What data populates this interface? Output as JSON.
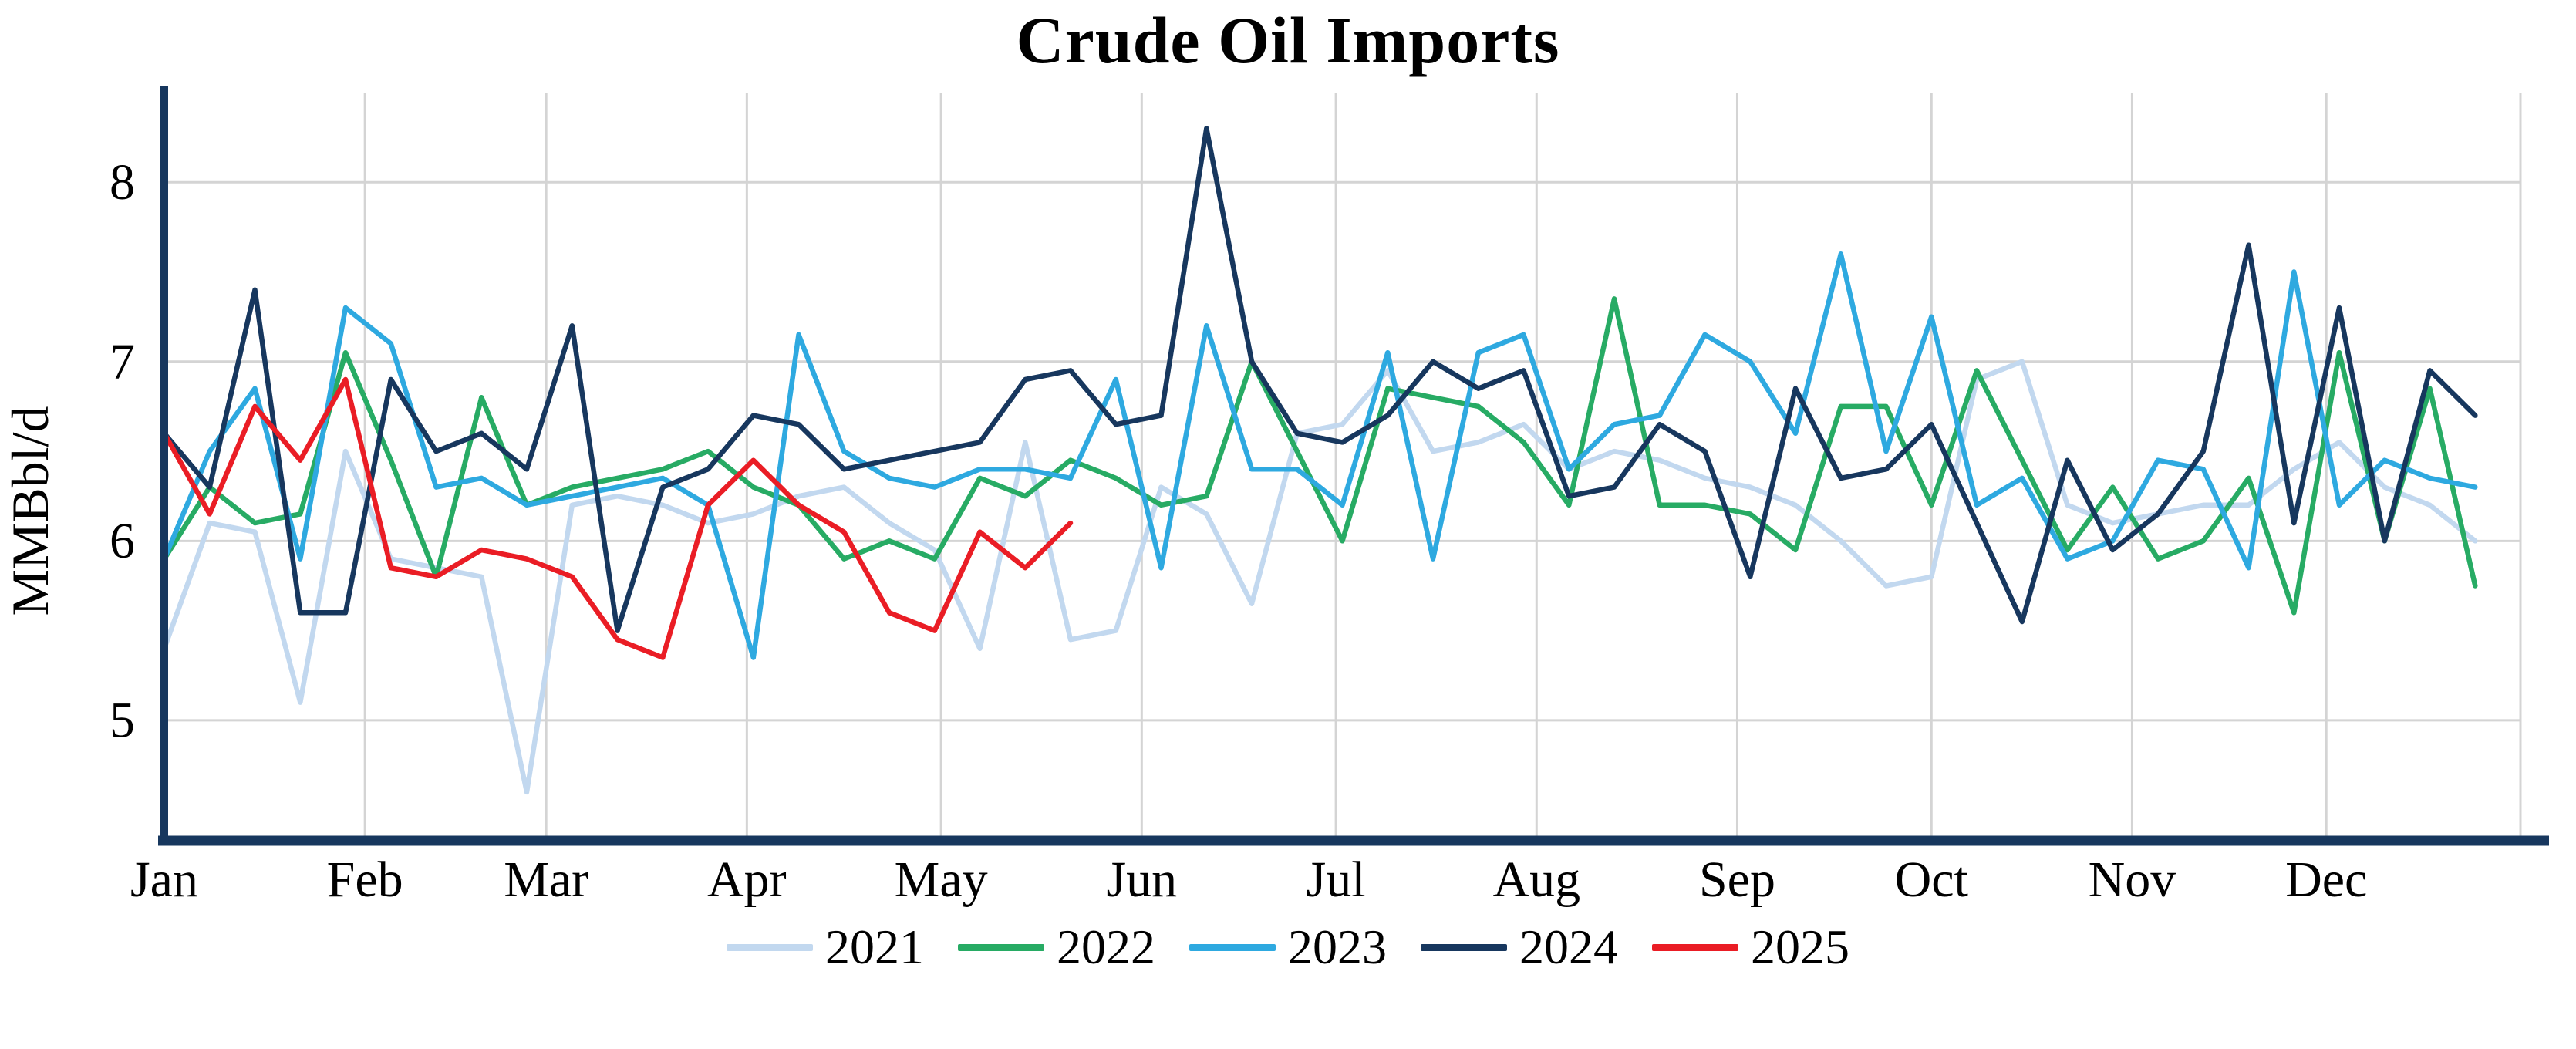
{
  "chart_data": {
    "type": "line",
    "title": "Crude Oil Imports",
    "ylabel": "MMBbl/d",
    "xlabel": "",
    "x_unit": "week-of-year",
    "x_tick_labels": [
      "Jan",
      "Feb",
      "Mar",
      "Apr",
      "May",
      "Jun",
      "Jul",
      "Aug",
      "Sep",
      "Oct",
      "Nov",
      "Dec"
    ],
    "yticks": [
      5,
      6,
      7,
      8
    ],
    "ylim": [
      4.35,
      8.5
    ],
    "grid": true,
    "legend_position": "bottom",
    "axis_color": "#17375e",
    "grid_color": "#d4d4d4",
    "series": [
      {
        "name": "2021",
        "color": "#c2d8ef",
        "values": [
          5.4,
          6.1,
          6.05,
          5.1,
          6.5,
          5.9,
          5.85,
          5.8,
          4.6,
          6.2,
          6.25,
          6.2,
          6.1,
          6.15,
          6.25,
          6.3,
          6.1,
          5.95,
          5.4,
          6.55,
          5.45,
          5.5,
          6.3,
          6.15,
          5.65,
          6.6,
          6.65,
          6.95,
          6.5,
          6.55,
          6.65,
          6.4,
          6.5,
          6.45,
          6.35,
          6.3,
          6.2,
          6.0,
          5.75,
          5.8,
          6.9,
          7.0,
          6.2,
          6.1,
          6.15,
          6.2,
          6.2,
          6.4,
          6.55,
          6.3,
          6.2,
          6.0
        ]
      },
      {
        "name": "2022",
        "color": "#27ab64",
        "values": [
          5.9,
          6.3,
          6.1,
          6.15,
          7.05,
          6.45,
          5.8,
          6.8,
          6.2,
          6.3,
          6.35,
          6.4,
          6.5,
          6.3,
          6.2,
          5.9,
          6.0,
          5.9,
          6.35,
          6.25,
          6.45,
          6.35,
          6.2,
          6.25,
          7.0,
          6.5,
          6.0,
          6.85,
          6.8,
          6.75,
          6.55,
          6.2,
          7.35,
          6.2,
          6.2,
          6.15,
          5.95,
          6.75,
          6.75,
          6.2,
          6.95,
          6.45,
          5.95,
          6.3,
          5.9,
          6.0,
          6.35,
          5.6,
          7.05,
          6.0,
          6.85,
          5.75
        ]
      },
      {
        "name": "2023",
        "color": "#2ea9e0",
        "values": [
          5.9,
          6.5,
          6.85,
          5.9,
          7.3,
          7.1,
          6.3,
          6.35,
          6.2,
          6.25,
          6.3,
          6.35,
          6.2,
          5.35,
          7.15,
          6.5,
          6.35,
          6.3,
          6.4,
          6.4,
          6.35,
          6.9,
          5.85,
          7.2,
          6.4,
          6.4,
          6.2,
          7.05,
          5.9,
          7.05,
          7.15,
          6.4,
          6.65,
          6.7,
          7.15,
          7.0,
          6.6,
          7.6,
          6.5,
          7.25,
          6.2,
          6.35,
          5.9,
          6.0,
          6.45,
          6.4,
          5.85,
          7.5,
          6.2,
          6.45,
          6.35,
          6.3
        ]
      },
      {
        "name": "2024",
        "color": "#17375e",
        "values": [
          6.6,
          6.3,
          7.4,
          5.6,
          5.6,
          6.9,
          6.5,
          6.6,
          6.4,
          7.2,
          5.5,
          6.3,
          6.4,
          6.7,
          6.65,
          6.4,
          6.45,
          6.5,
          6.55,
          6.9,
          6.95,
          6.65,
          6.7,
          8.3,
          7.0,
          6.6,
          6.55,
          6.7,
          7.0,
          6.85,
          6.95,
          6.25,
          6.3,
          6.65,
          6.5,
          5.8,
          6.85,
          6.35,
          6.4,
          6.65,
          6.1,
          5.55,
          6.45,
          5.95,
          6.15,
          6.5,
          7.65,
          6.1,
          7.3,
          6.0,
          6.95,
          6.7
        ]
      },
      {
        "name": "2025",
        "color": "#ea1d25",
        "values": [
          6.6,
          6.15,
          6.75,
          6.45,
          6.9,
          5.85,
          5.8,
          5.95,
          5.9,
          5.8,
          5.45,
          5.35,
          6.2,
          6.45,
          6.2,
          6.05,
          5.6,
          5.5,
          6.05,
          5.85,
          6.1
        ]
      }
    ]
  }
}
